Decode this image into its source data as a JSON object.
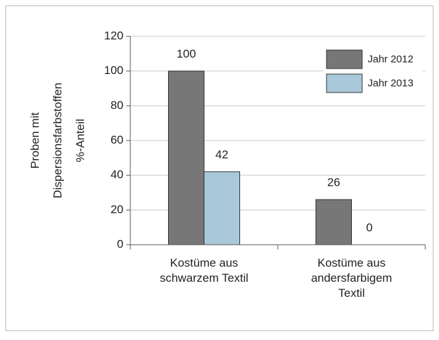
{
  "chart_data": {
    "type": "bar",
    "ylabel": [
      "Proben mit",
      "Dispersionsfarbstoffen",
      "%-Anteil"
    ],
    "categories": [
      "Kostüme aus\nschwarzem Textil",
      "Kostüme aus\nandersfarbigem\nTextil"
    ],
    "series": [
      {
        "name": "Jahr 2012",
        "color": "#777777",
        "values": [
          100,
          26
        ]
      },
      {
        "name": "Jahr 2013",
        "color": "#a9c8d9",
        "values": [
          42,
          0
        ]
      }
    ],
    "ylim": [
      0,
      120
    ],
    "yticks": [
      0,
      20,
      40,
      60,
      80,
      100,
      120
    ],
    "grid": true,
    "legend": "top-right"
  }
}
